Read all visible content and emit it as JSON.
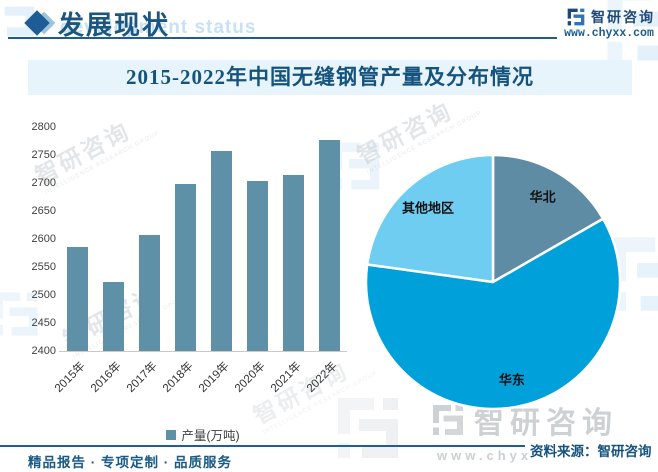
{
  "header": {
    "title": "发展现状",
    "watermark_text": "development status"
  },
  "brand": {
    "name": "智研咨询",
    "tagline_en": "INTELLIGENCE RESEARCH GROUP",
    "site": "www.chyxx.com"
  },
  "banner": {
    "title": "2015-2022年中国无缝钢管产量及分布情况"
  },
  "footer": {
    "left": "精品报告 · 专项定制 · 品质服务",
    "right": "资料来源：智研咨询"
  },
  "colors": {
    "accent_dark_blue": "#1d5c8c",
    "banner_bg": "#e8f4fb",
    "bar": "#5e90a7",
    "pie_huabei": "#5e8ca4",
    "pie_huadong": "#00a0da",
    "pie_other": "#6fcdf2"
  },
  "chart_data": [
    {
      "type": "bar",
      "title": "2015-2022年中国无缝钢管产量及分布情况",
      "categories": [
        "2015年",
        "2016年",
        "2017年",
        "2018年",
        "2019年",
        "2020年",
        "2021年",
        "2022年"
      ],
      "series": [
        {
          "name": "产量(万吨)",
          "values": [
            2585,
            2523,
            2608,
            2698,
            2757,
            2704,
            2715,
            2776
          ]
        }
      ],
      "ylabel": "",
      "xlabel": "",
      "ylim": [
        2400,
        2800
      ],
      "ytick_step": 50,
      "bar_color": "#5e90a7",
      "grid": false,
      "legend_position": "bottom"
    },
    {
      "type": "pie",
      "start_angle_deg": 0,
      "direction": "clockwise",
      "slices": [
        {
          "label": "华北",
          "percent": 16.7,
          "color": "#5e8ca4"
        },
        {
          "label": "华东",
          "percent": 60.5,
          "color": "#00a0da"
        },
        {
          "label": "其他地区",
          "percent": 22.8,
          "color": "#6fcdf2"
        }
      ]
    }
  ]
}
